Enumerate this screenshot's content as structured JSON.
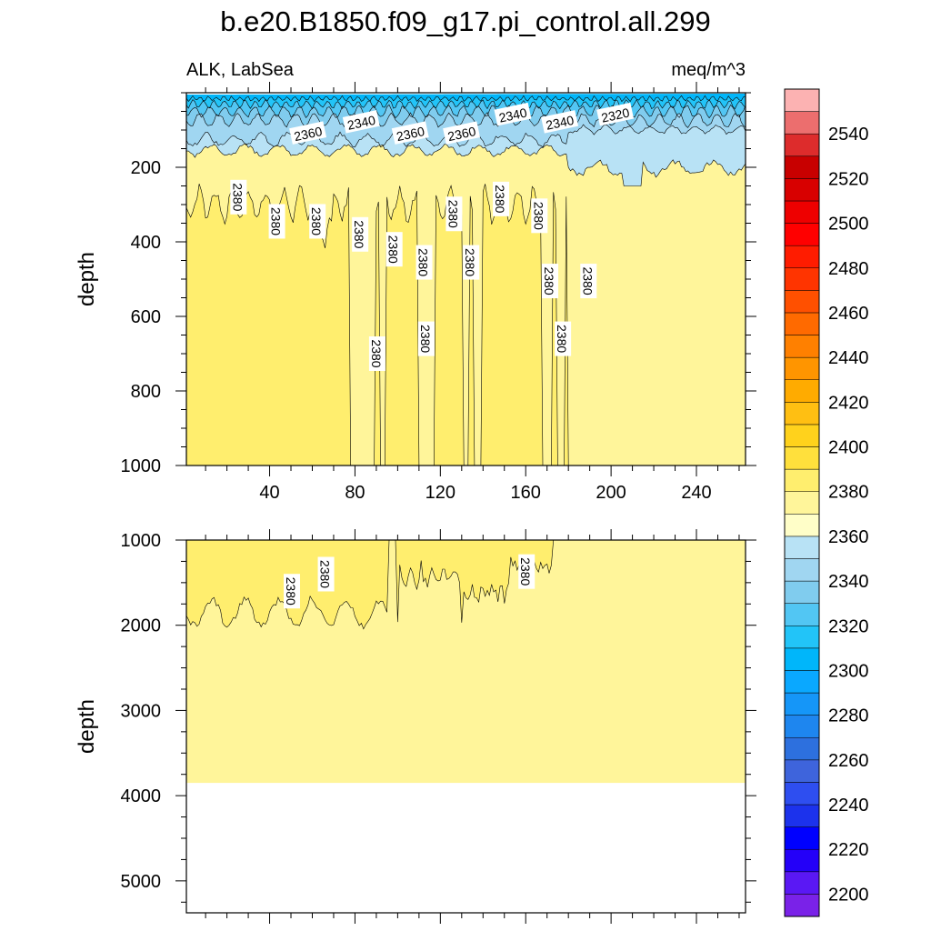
{
  "chart_data": {
    "type": "heatmap",
    "title": "b.e20.B1850.f09_g17.pi_control.all.299",
    "left_label": "ALK, LabSea",
    "right_label": "meq/m^3",
    "panels": [
      {
        "name": "upper",
        "ylabel": "depth",
        "ylim": [
          0,
          1000
        ],
        "yticks": [
          200,
          400,
          600,
          800,
          1000
        ],
        "xlim": [
          1,
          263
        ],
        "xticks": [
          40,
          80,
          120,
          160,
          200,
          240
        ],
        "contour_labels": [
          {
            "text": "2360",
            "x": 58,
            "y": 110
          },
          {
            "text": "2340",
            "x": 83,
            "y": 80
          },
          {
            "text": "2360",
            "x": 106,
            "y": 110
          },
          {
            "text": "2360",
            "x": 130,
            "y": 110
          },
          {
            "text": "2340",
            "x": 154,
            "y": 60
          },
          {
            "text": "2340",
            "x": 176,
            "y": 80
          },
          {
            "text": "2320",
            "x": 202,
            "y": 60
          },
          {
            "text": "2380",
            "x": 25,
            "y": 280
          },
          {
            "text": "2380",
            "x": 43,
            "y": 345
          },
          {
            "text": "2380",
            "x": 62,
            "y": 345
          },
          {
            "text": "2380",
            "x": 82,
            "y": 380
          },
          {
            "text": "2380",
            "x": 98,
            "y": 420
          },
          {
            "text": "2380",
            "x": 112,
            "y": 455
          },
          {
            "text": "2380",
            "x": 126,
            "y": 325
          },
          {
            "text": "2380",
            "x": 134,
            "y": 455
          },
          {
            "text": "2380",
            "x": 148,
            "y": 285
          },
          {
            "text": "2380",
            "x": 166,
            "y": 330
          },
          {
            "text": "2380",
            "x": 171,
            "y": 505
          },
          {
            "text": "2380",
            "x": 189,
            "y": 505
          },
          {
            "text": "2380",
            "x": 90,
            "y": 700
          },
          {
            "text": "2380",
            "x": 113,
            "y": 660
          },
          {
            "text": "2380",
            "x": 177,
            "y": 660
          }
        ]
      },
      {
        "name": "lower",
        "ylabel": "depth",
        "ylim": [
          1000,
          5375
        ],
        "yticks": [
          1000,
          2000,
          3000,
          4000,
          5000
        ],
        "xlim": [
          1,
          263
        ],
        "xticks": [
          40,
          80,
          120,
          160,
          200,
          240
        ],
        "ocean_bottom": 3850,
        "contour_labels": [
          {
            "text": "2380",
            "x": 50,
            "y": 1600
          },
          {
            "text": "2380",
            "x": 66,
            "y": 1400
          },
          {
            "text": "2380",
            "x": 160,
            "y": 1370
          }
        ]
      }
    ],
    "colorbar": {
      "min": 2190,
      "step": 10,
      "colors": [
        "#7a22e8",
        "#5a18f4",
        "#2400f8",
        "#0000ff",
        "#1c32ec",
        "#2e4ef0",
        "#3e64dc",
        "#2d70de",
        "#1e86ef",
        "#1596f8",
        "#0aa8ff",
        "#00b6fa",
        "#22c4f8",
        "#52c6f3",
        "#80ccee",
        "#a0d6f1",
        "#b8e2f5",
        "#fffec8",
        "#fff59a",
        "#ffee6e",
        "#ffe03c",
        "#ffd21c",
        "#ffbf12",
        "#ffab00",
        "#ff9500",
        "#ff8000",
        "#ff6a00",
        "#ff5000",
        "#ff3400",
        "#ff1c00",
        "#ff0000",
        "#ee0000",
        "#d80000",
        "#c80000",
        "#dd2c2c",
        "#ec6e6e",
        "#fcb2b2"
      ],
      "labels": [
        "2200",
        "2220",
        "2240",
        "2260",
        "2280",
        "2300",
        "2320",
        "2340",
        "2360",
        "2380",
        "2400",
        "2420",
        "2440",
        "2460",
        "2480",
        "2500",
        "2520",
        "2540"
      ]
    }
  }
}
